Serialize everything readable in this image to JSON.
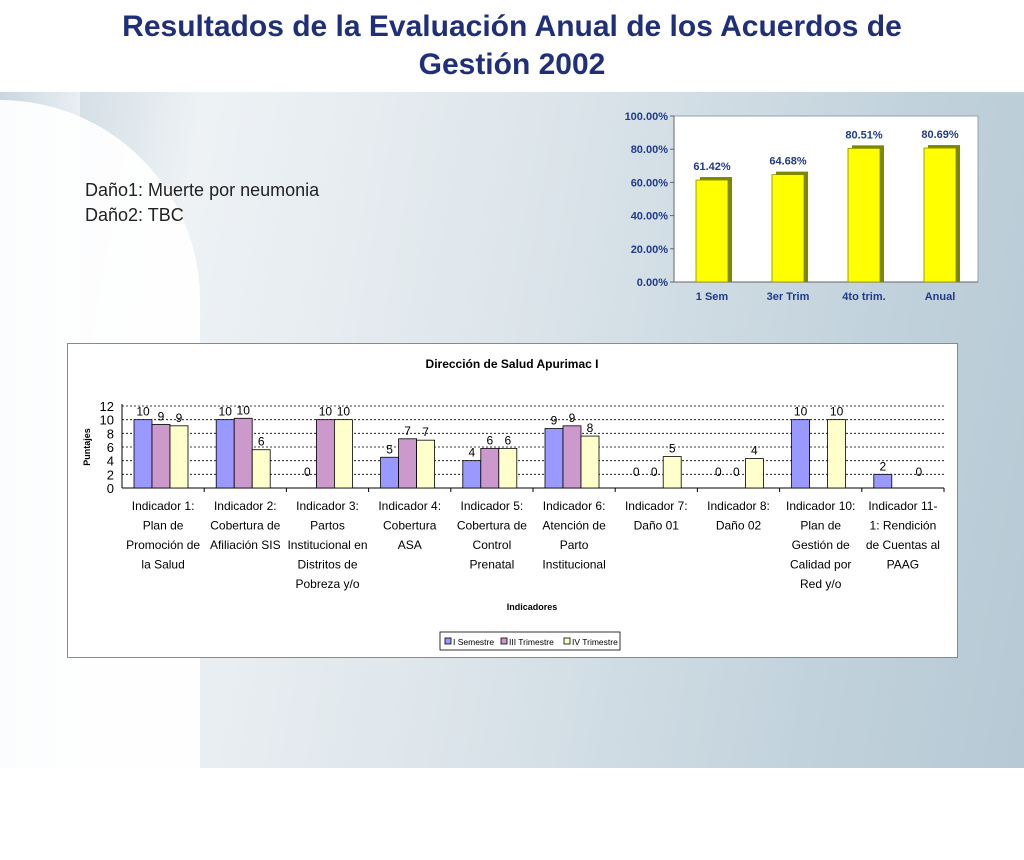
{
  "slide": {
    "title_line1": "Resultados de la Evaluación Anual de los Acuerdos de",
    "title_line2": "Gestión 2002",
    "note1": "Daño1: Muerte por neumonia",
    "note2": "Daño2: TBC"
  },
  "colors": {
    "title": "#1f2f7a",
    "bar_yellow": "#ffff00",
    "series1": "#9999ff",
    "series2": "#cc99cc",
    "series3": "#ffffcc"
  },
  "chart_data": [
    {
      "type": "bar",
      "categories": [
        "1 Sem",
        "3er Trim",
        "4to trim.",
        "Anual"
      ],
      "values": [
        61.42,
        64.68,
        80.51,
        80.69
      ],
      "data_labels": [
        "61.42%",
        "64.68%",
        "80.51%",
        "80.69%"
      ],
      "yticks": [
        "0.00%",
        "20.00%",
        "40.00%",
        "60.00%",
        "80.00%",
        "100.00%"
      ],
      "ylim": [
        0,
        100
      ],
      "grid": false
    },
    {
      "type": "bar",
      "title": "Dirección de Salud Apurimac I",
      "xlabel": "Indicadores",
      "ylabel": "Puntajes",
      "ylim": [
        0,
        12
      ],
      "yticks": [
        "0",
        "2",
        "4",
        "6",
        "8",
        "10",
        "12"
      ],
      "grid": true,
      "legend_position": "bottom",
      "categories": [
        [
          "Indicador 1:",
          "Plan de",
          "Promoción de",
          "la Salud"
        ],
        [
          "Indicador 2:",
          "Cobertura de",
          "Afiliación SIS"
        ],
        [
          "Indicador 3:",
          "Partos",
          "Institucional en",
          "Distritos de",
          "Pobreza y/o"
        ],
        [
          "Indicador 4:",
          "Cobertura",
          "ASA"
        ],
        [
          "Indicador 5:",
          "Cobertura de",
          "Control",
          "Prenatal"
        ],
        [
          "Indicador 6:",
          "Atención de",
          "Parto",
          "Institucional"
        ],
        [
          "Indicador 7:",
          "Daño 01"
        ],
        [
          "Indicador 8:",
          "Daño 02"
        ],
        [
          "Indicador 10:",
          "Plan de",
          "Gestión de",
          "Calidad por",
          "Red y/o"
        ],
        [
          "Indicador 11-",
          "1: Rendición",
          "de Cuentas al",
          "PAAG"
        ]
      ],
      "series": [
        {
          "name": "I Semestre",
          "values": [
            10,
            10,
            0,
            4.5,
            4,
            8.7,
            0,
            0,
            10,
            2
          ],
          "labels": [
            "10",
            "10",
            "0",
            "5",
            "4",
            "9",
            "0",
            "0",
            "10",
            "2"
          ]
        },
        {
          "name": "III Trimestre",
          "values": [
            9.3,
            10.2,
            10,
            7.2,
            5.8,
            9.1,
            0,
            0,
            null,
            0
          ],
          "labels": [
            "9",
            "10",
            "10",
            "7",
            "6",
            "9",
            "0",
            "0",
            "",
            ""
          ]
        },
        {
          "name": "IV Trimestre",
          "values": [
            9.1,
            5.6,
            10,
            7,
            5.8,
            7.6,
            4.6,
            4.3,
            10,
            0
          ],
          "labels": [
            "9",
            "6",
            "10",
            "7",
            "6",
            "8",
            "5",
            "4",
            "10",
            "0"
          ]
        }
      ]
    }
  ]
}
